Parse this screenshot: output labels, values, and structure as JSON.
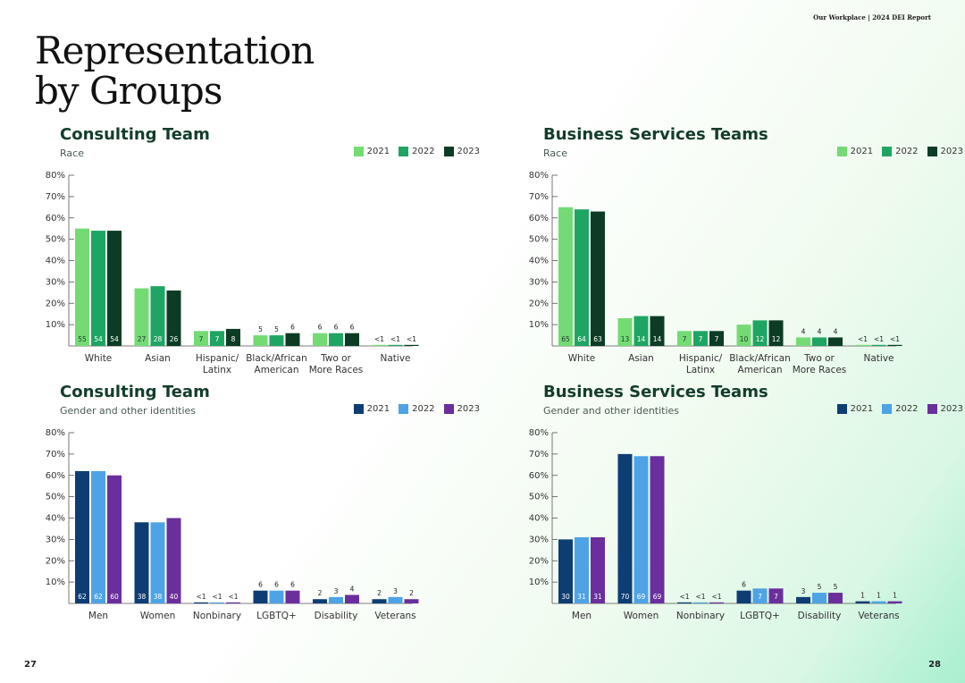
{
  "header": "Our Workplace | 2024 DEI Report",
  "page_title_line1": "Representation",
  "page_title_line2": "by Groups",
  "page_left": "27",
  "page_right": "28",
  "chart_data": [
    {
      "type": "bar",
      "title": "Consulting Team",
      "subtitle": "Race",
      "categories": [
        [
          "White"
        ],
        [
          "Asian"
        ],
        [
          "Hispanic/",
          "Latinx"
        ],
        [
          "Black/African",
          "American"
        ],
        [
          "Two or",
          "More Races"
        ],
        [
          "Native"
        ]
      ],
      "series": [
        {
          "name": "2021",
          "color": "#74db74",
          "values": [
            55,
            27,
            7,
            5,
            6,
            0.4
          ],
          "labels": [
            "55",
            "27",
            "7",
            "5",
            "6",
            "<1"
          ]
        },
        {
          "name": "2022",
          "color": "#1fa563",
          "values": [
            54,
            28,
            7,
            5,
            6,
            0.4
          ],
          "labels": [
            "54",
            "28",
            "7",
            "5",
            "6",
            "<1"
          ]
        },
        {
          "name": "2023",
          "color": "#0c3d24",
          "values": [
            54,
            26,
            8,
            6,
            6,
            0.4
          ],
          "labels": [
            "54",
            "26",
            "8",
            "6",
            "6",
            "<1"
          ]
        }
      ],
      "yticks": [
        "10%",
        "20%",
        "30%",
        "40%",
        "50%",
        "60%",
        "70%",
        "80%"
      ],
      "ylim": [
        0,
        80
      ]
    },
    {
      "type": "bar",
      "title": "Business Services Teams",
      "subtitle": "Race",
      "categories": [
        [
          "White"
        ],
        [
          "Asian"
        ],
        [
          "Hispanic/",
          "Latinx"
        ],
        [
          "Black/African",
          "American"
        ],
        [
          "Two or",
          "More Races"
        ],
        [
          "Native"
        ]
      ],
      "series": [
        {
          "name": "2021",
          "color": "#74db74",
          "values": [
            65,
            13,
            7,
            10,
            4,
            0.4
          ],
          "labels": [
            "65",
            "13",
            "7",
            "10",
            "4",
            "<1"
          ]
        },
        {
          "name": "2022",
          "color": "#1fa563",
          "values": [
            64,
            14,
            7,
            12,
            4,
            0.4
          ],
          "labels": [
            "64",
            "14",
            "7",
            "12",
            "4",
            "<1"
          ]
        },
        {
          "name": "2023",
          "color": "#0c3d24",
          "values": [
            63,
            14,
            7,
            12,
            4,
            0.4
          ],
          "labels": [
            "63",
            "14",
            "7",
            "12",
            "4",
            "<1"
          ]
        }
      ],
      "yticks": [
        "10%",
        "20%",
        "30%",
        "40%",
        "50%",
        "60%",
        "70%",
        "80%"
      ],
      "ylim": [
        0,
        80
      ]
    },
    {
      "type": "bar",
      "title": "Consulting Team",
      "subtitle": "Gender and other identities",
      "categories": [
        [
          "Men"
        ],
        [
          "Women"
        ],
        [
          "Nonbinary"
        ],
        [
          "LGBTQ+"
        ],
        [
          "Disability"
        ],
        [
          "Veterans"
        ]
      ],
      "series": [
        {
          "name": "2021",
          "color": "#0e3d73",
          "values": [
            62,
            38,
            0.4,
            6,
            2,
            2
          ],
          "labels": [
            "62",
            "38",
            "<1",
            "6",
            "2",
            "2"
          ]
        },
        {
          "name": "2022",
          "color": "#4ea3e6",
          "values": [
            62,
            38,
            0.4,
            6,
            3,
            3
          ],
          "labels": [
            "62",
            "38",
            "<1",
            "6",
            "3",
            "3"
          ]
        },
        {
          "name": "2023",
          "color": "#6a2f9c",
          "values": [
            60,
            40,
            0.4,
            6,
            4,
            2
          ],
          "labels": [
            "60",
            "40",
            "<1",
            "6",
            "4",
            "2"
          ]
        }
      ],
      "yticks": [
        "10%",
        "20%",
        "30%",
        "40%",
        "50%",
        "60%",
        "70%",
        "80%"
      ],
      "ylim": [
        0,
        80
      ]
    },
    {
      "type": "bar",
      "title": "Business Services Teams",
      "subtitle": "Gender and other identities",
      "categories": [
        [
          "Men"
        ],
        [
          "Women"
        ],
        [
          "Nonbinary"
        ],
        [
          "LGBTQ+"
        ],
        [
          "Disability"
        ],
        [
          "Veterans"
        ]
      ],
      "series": [
        {
          "name": "2021",
          "color": "#0e3d73",
          "values": [
            30,
            70,
            0.4,
            6,
            3,
            1
          ],
          "labels": [
            "30",
            "70",
            "<1",
            "6",
            "3",
            "1"
          ]
        },
        {
          "name": "2022",
          "color": "#4ea3e6",
          "values": [
            31,
            69,
            0.4,
            7,
            5,
            1
          ],
          "labels": [
            "31",
            "69",
            "<1",
            "7",
            "5",
            "1"
          ]
        },
        {
          "name": "2023",
          "color": "#6a2f9c",
          "values": [
            31,
            69,
            0.4,
            7,
            5,
            1
          ],
          "labels": [
            "31",
            "69",
            "<1",
            "7",
            "5",
            "1"
          ]
        }
      ],
      "yticks": [
        "10%",
        "20%",
        "30%",
        "40%",
        "50%",
        "60%",
        "70%",
        "80%"
      ],
      "ylim": [
        0,
        80
      ]
    }
  ]
}
